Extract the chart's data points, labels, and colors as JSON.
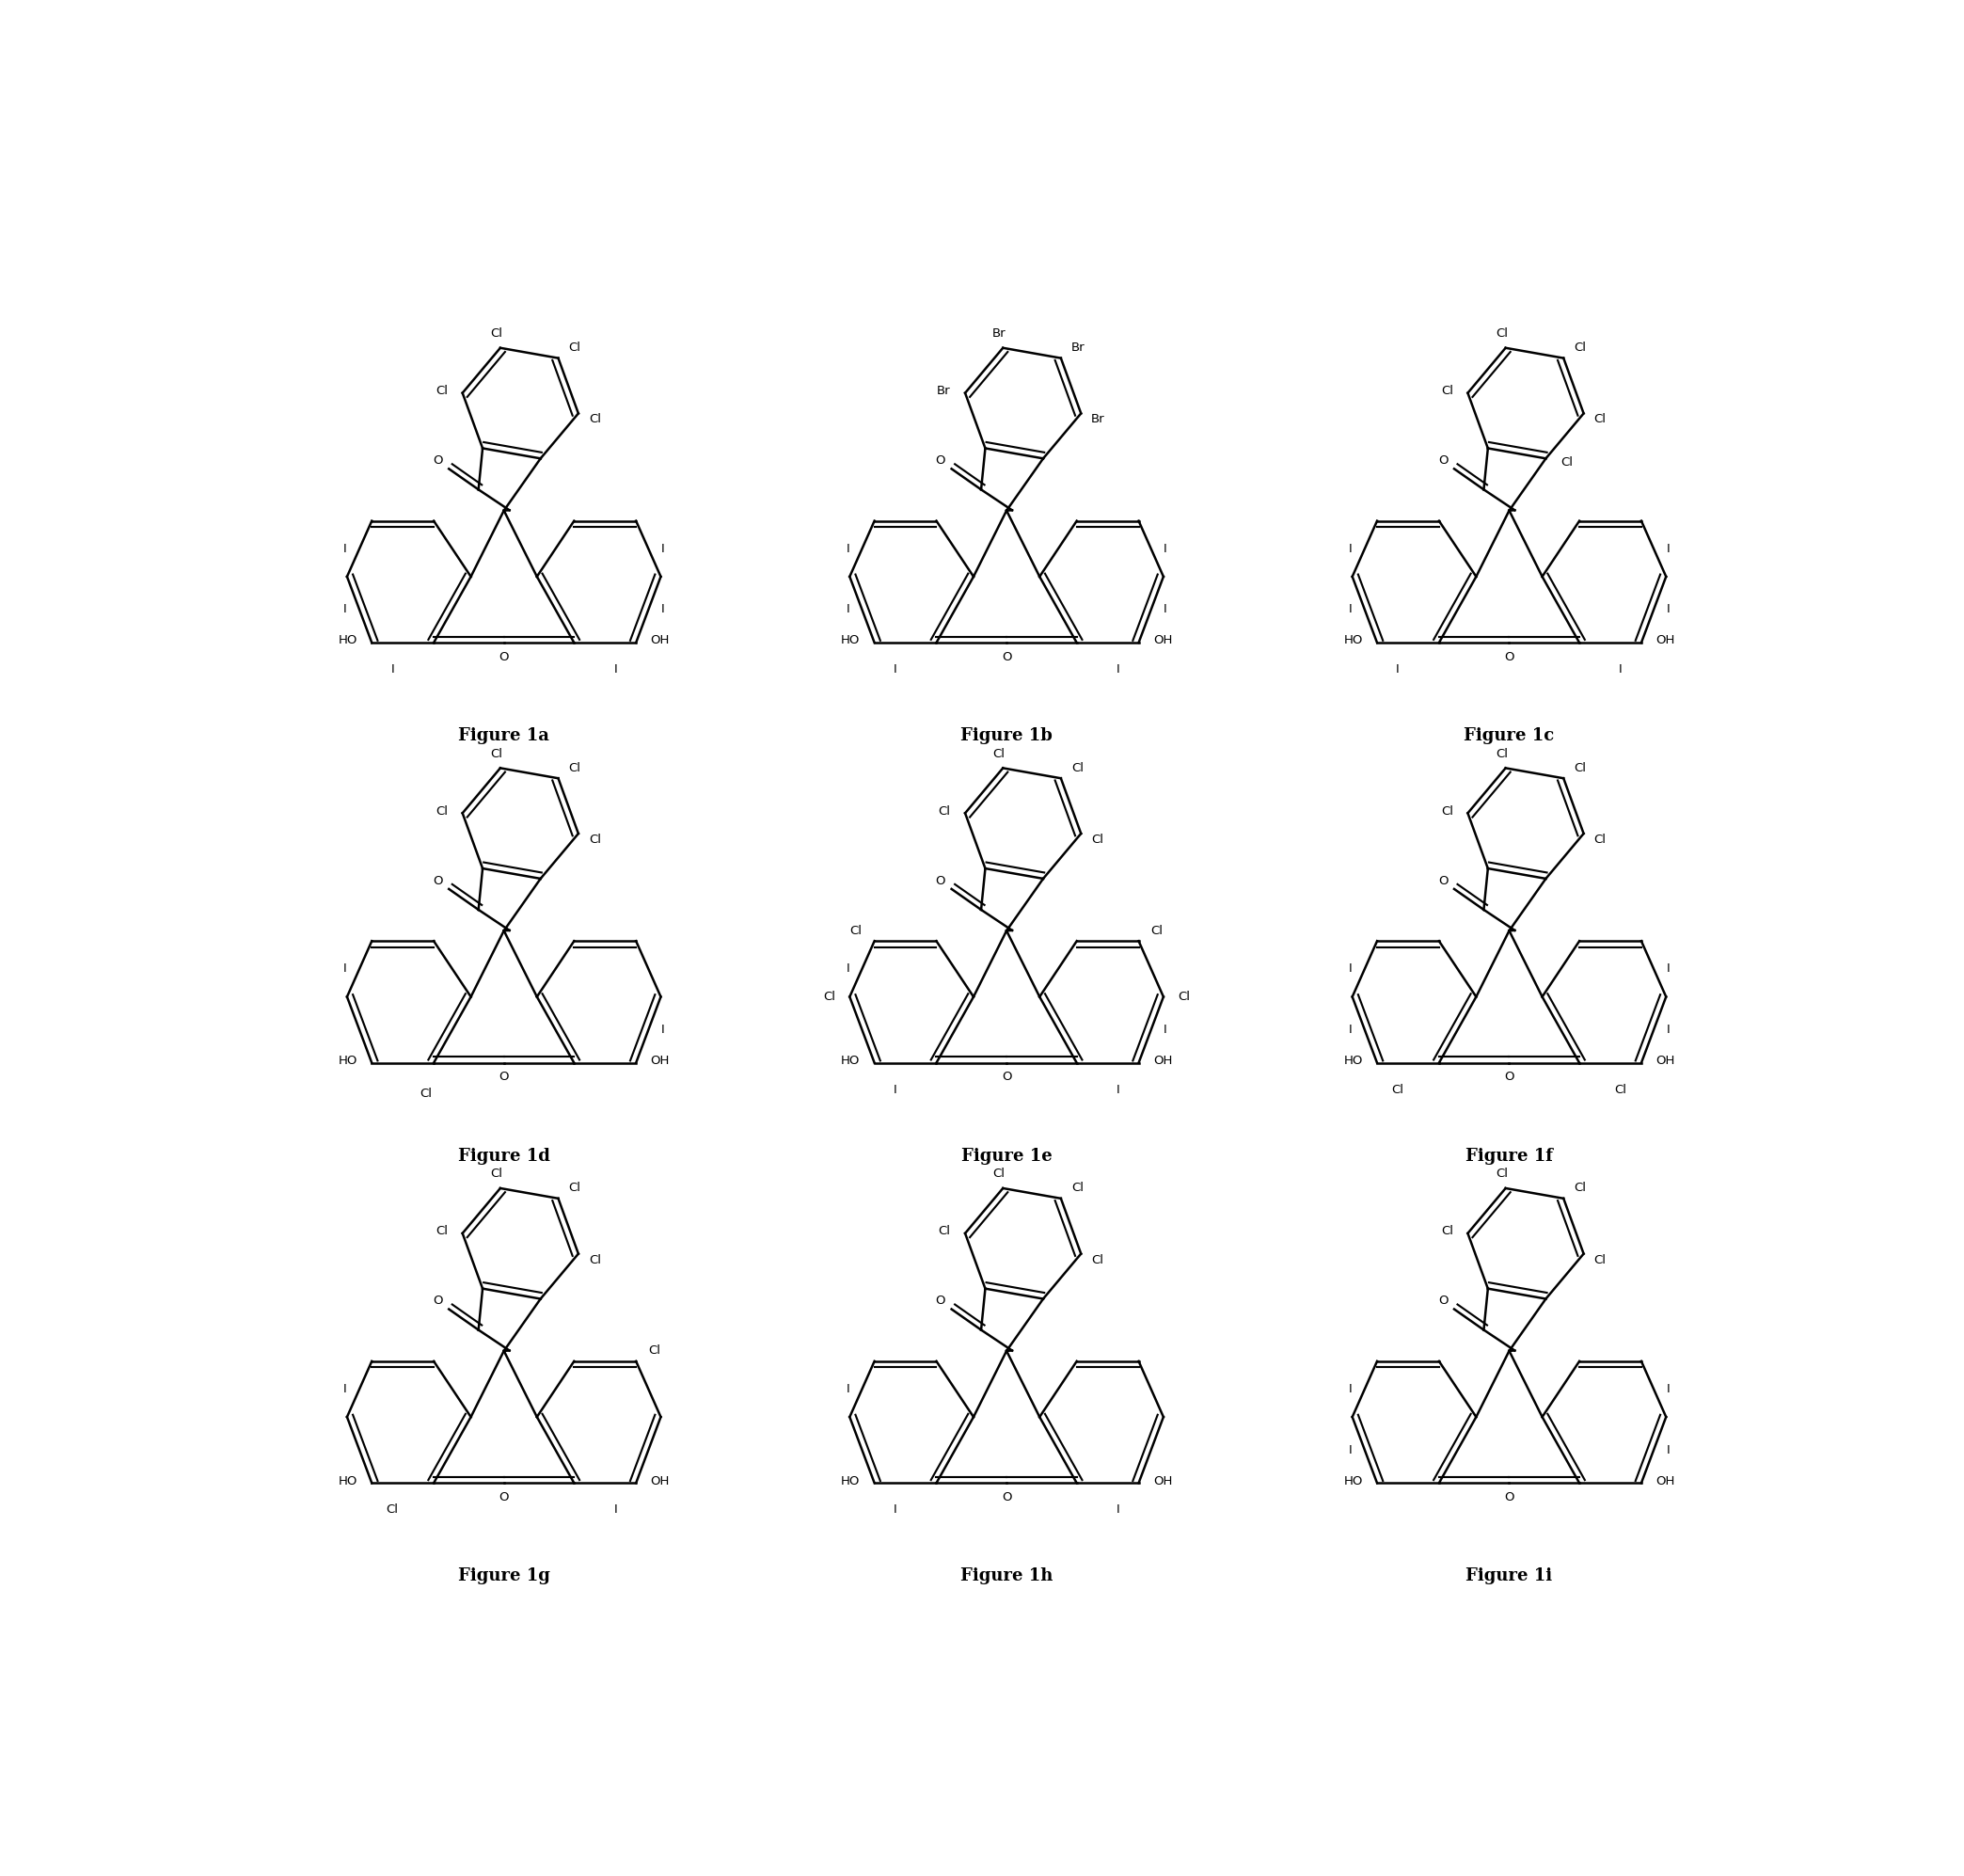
{
  "background_color": "#ffffff",
  "line_color": "#000000",
  "line_width": 1.8,
  "font_size": 9.5,
  "label_font_size": 13,
  "figures": [
    {
      "name": "Figure 1a",
      "top_hal": [
        "Cl",
        "Cl",
        "Cl",
        "Cl"
      ],
      "xan_left_upper": "I",
      "xan_left_lower": "I",
      "xan_right_upper": "I",
      "xan_right_lower": "I",
      "xan_extra_left": null,
      "xan_extra_right": null,
      "bottom_left_sub": "I",
      "bottom_right_sub": "I",
      "extra_ring_sub": null
    },
    {
      "name": "Figure 1b",
      "top_hal": [
        "Br",
        "Br",
        "Br",
        "Br"
      ],
      "xan_left_upper": "I",
      "xan_left_lower": "I",
      "xan_right_upper": "I",
      "xan_right_lower": "I",
      "xan_extra_left": null,
      "xan_extra_right": null,
      "bottom_left_sub": "I",
      "bottom_right_sub": "I",
      "extra_ring_sub": null
    },
    {
      "name": "Figure 1c",
      "top_hal": [
        "Cl",
        "Cl",
        "Cl",
        "Cl"
      ],
      "top_hal_extra": "Cl",
      "xan_left_upper": "I",
      "xan_left_lower": "I",
      "xan_right_upper": "I",
      "xan_right_lower": "I",
      "xan_extra_left": null,
      "xan_extra_right": null,
      "bottom_left_sub": "I",
      "bottom_right_sub": "I",
      "extra_ring_sub": null
    },
    {
      "name": "Figure 1d",
      "top_hal": [
        "Cl",
        "Cl",
        "Cl",
        "Cl"
      ],
      "xan_left_upper": "I",
      "xan_left_lower": null,
      "xan_right_upper": null,
      "xan_right_lower": "I",
      "xan_extra_left": null,
      "xan_extra_right": null,
      "bottom_left_sub": null,
      "bottom_right_sub": null,
      "extra_ring_sub": "Cl",
      "extra_ring_sub_pos": "bottom_left_inner"
    },
    {
      "name": "Figure 1e",
      "top_hal": [
        "Cl",
        "Cl",
        "Cl",
        "Cl"
      ],
      "xan_left_upper": "I",
      "xan_left_lower": null,
      "xan_right_upper": null,
      "xan_right_lower": "I",
      "xan_extra_left": "Cl",
      "xan_extra_right": "Cl",
      "bottom_left_sub": "I",
      "bottom_right_sub": "I",
      "extra_cl_left_outer": "Cl",
      "extra_cl_right_outer": "Cl"
    },
    {
      "name": "Figure 1f",
      "top_hal": [
        "Cl",
        "Cl",
        "Cl",
        "Cl"
      ],
      "xan_left_upper": "I",
      "xan_left_lower": "I",
      "xan_right_upper": "I",
      "xan_right_lower": "I",
      "xan_extra_left": null,
      "xan_extra_right": null,
      "bottom_left_sub": "Cl",
      "bottom_right_sub": "Cl"
    },
    {
      "name": "Figure 1g",
      "top_hal": [
        "Cl",
        "Cl",
        "Cl",
        "Cl"
      ],
      "xan_left_upper": "I",
      "xan_left_lower": null,
      "xan_right_upper": null,
      "xan_right_lower": null,
      "xan_extra_left": null,
      "xan_extra_right": "Cl",
      "bottom_left_sub": "Cl",
      "bottom_right_sub": "I"
    },
    {
      "name": "Figure 1h",
      "top_hal": [
        "Cl",
        "Cl",
        "Cl",
        "Cl"
      ],
      "xan_left_upper": "I",
      "xan_left_lower": null,
      "xan_right_upper": null,
      "xan_right_lower": null,
      "xan_extra_left": null,
      "xan_extra_right": null,
      "bottom_left_sub": "I",
      "bottom_right_sub": "I"
    },
    {
      "name": "Figure 1i",
      "top_hal": [
        "Cl",
        "Cl",
        "Cl",
        "Cl"
      ],
      "xan_left_upper": "I",
      "xan_left_lower": "I",
      "xan_right_upper": "I",
      "xan_right_lower": "I",
      "xan_extra_left": null,
      "xan_extra_right": null,
      "bottom_left_sub": null,
      "bottom_right_sub": null
    }
  ]
}
